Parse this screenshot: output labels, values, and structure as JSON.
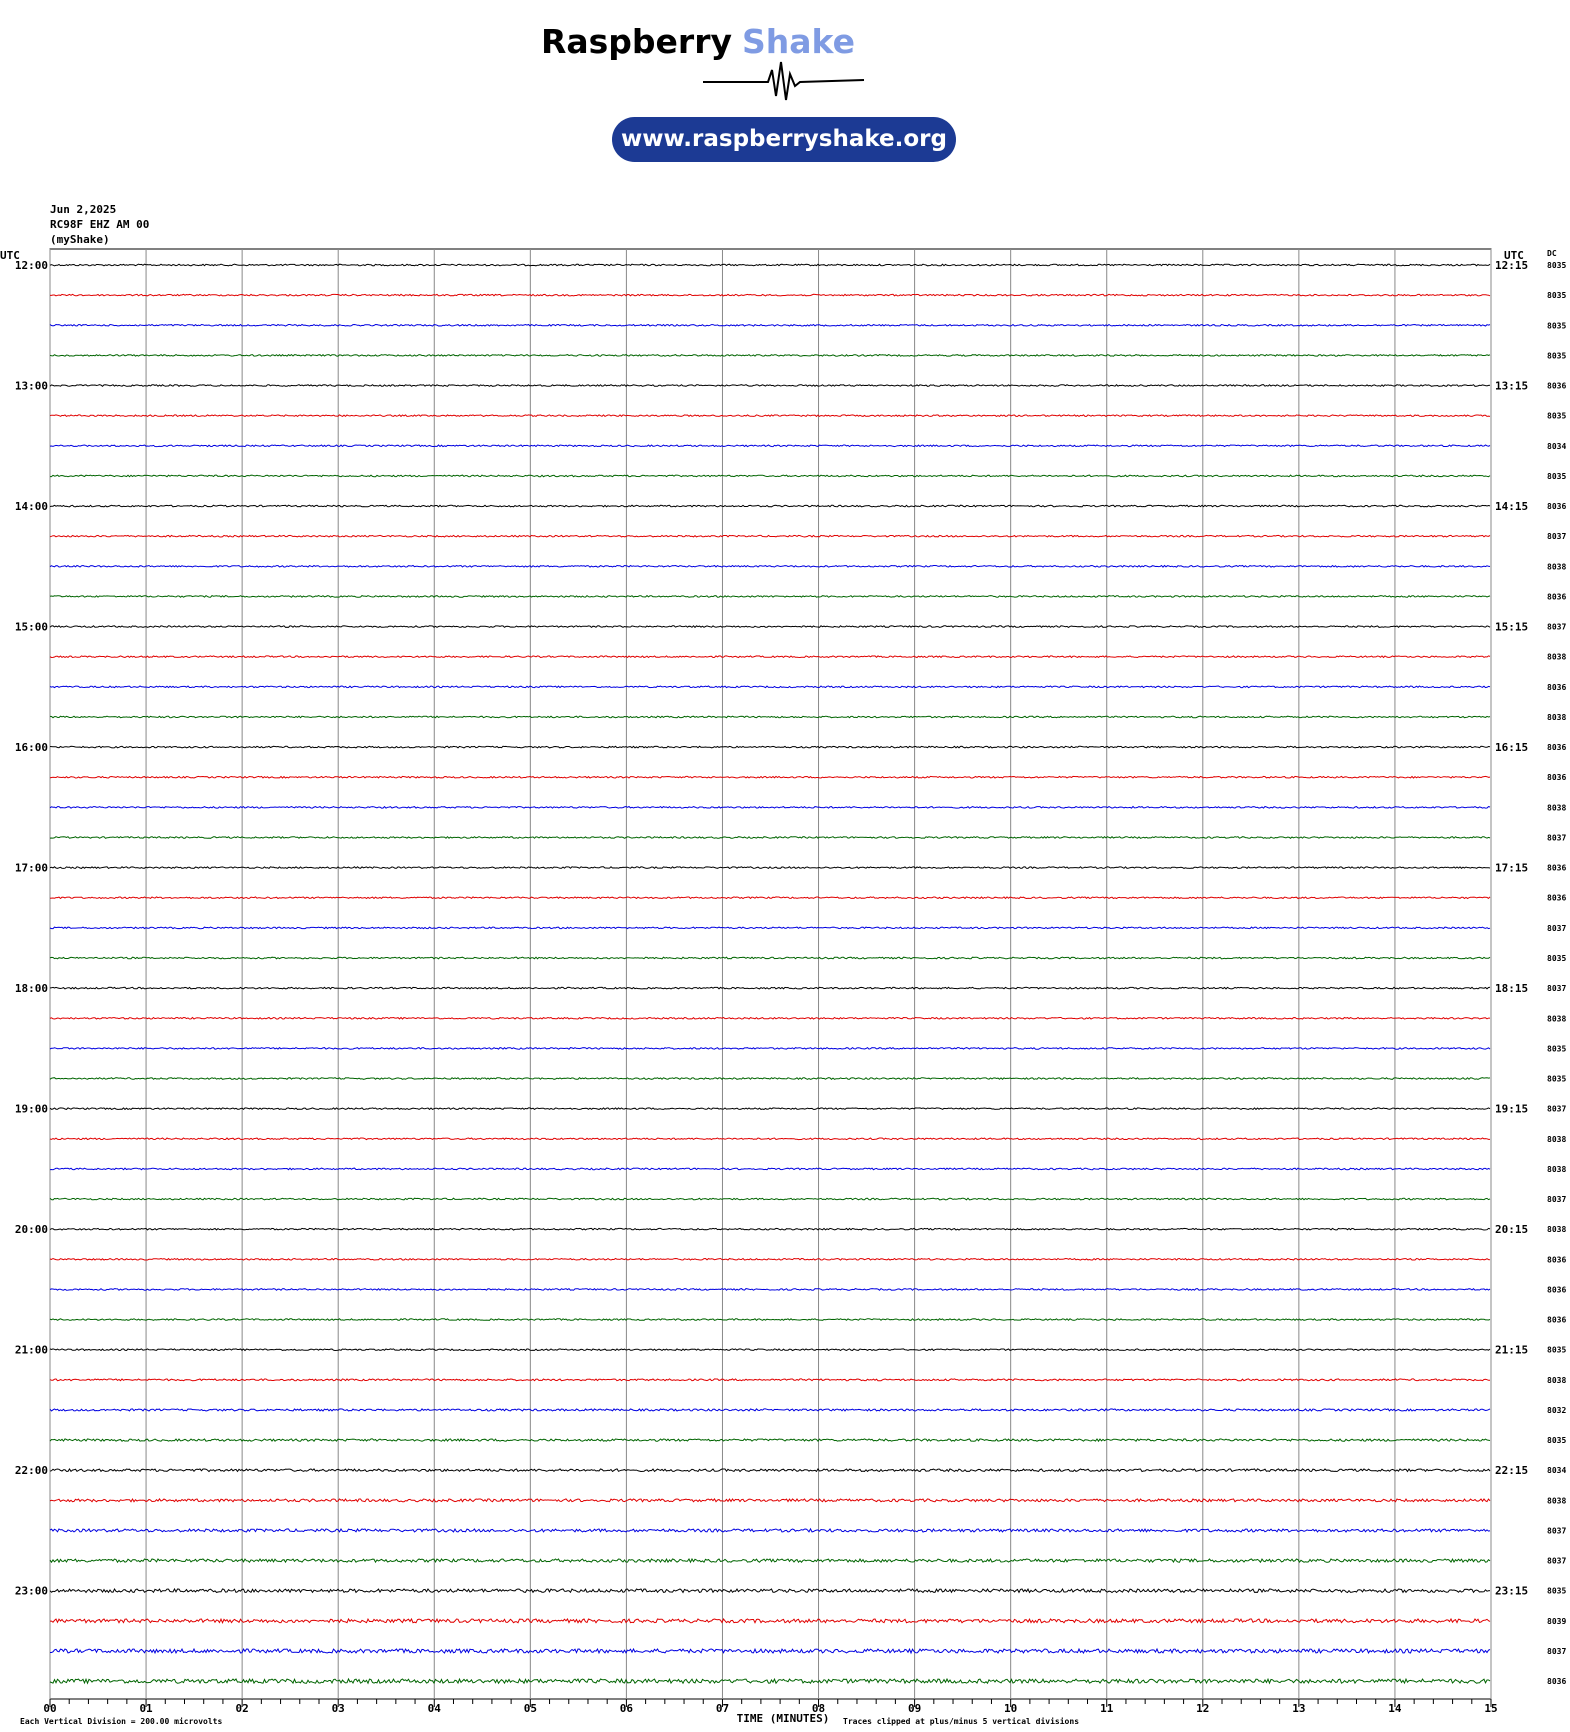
{
  "header": {
    "brand": "Raspberry",
    "brand_accent": "Shake",
    "url": "www.raspberryshake.org"
  },
  "info": {
    "date": "Jun 2,2025",
    "station": "RC98F EHZ AM 00",
    "source": "(myShake)"
  },
  "axis": {
    "left_heading": "UTC",
    "right_heading": "UTC",
    "dc_heading": "DC",
    "hours": [
      {
        "start": "12:00",
        "end": "12:15",
        "dc": [
          8035,
          8035,
          8035,
          8035
        ]
      },
      {
        "start": "13:00",
        "end": "13:15",
        "dc": [
          8036,
          8035,
          8034,
          8035
        ]
      },
      {
        "start": "14:00",
        "end": "14:15",
        "dc": [
          8036,
          8037,
          8038,
          8036
        ]
      },
      {
        "start": "15:00",
        "end": "15:15",
        "dc": [
          8037,
          8038,
          8036,
          8038
        ]
      },
      {
        "start": "16:00",
        "end": "16:15",
        "dc": [
          8036,
          8036,
          8038,
          8037
        ]
      },
      {
        "start": "17:00",
        "end": "17:15",
        "dc": [
          8036,
          8036,
          8037,
          8035
        ]
      },
      {
        "start": "18:00",
        "end": "18:15",
        "dc": [
          8037,
          8038,
          8035,
          8035
        ]
      },
      {
        "start": "19:00",
        "end": "19:15",
        "dc": [
          8037,
          8038,
          8038,
          8037
        ]
      },
      {
        "start": "20:00",
        "end": "20:15",
        "dc": [
          8038,
          8036,
          8036,
          8036
        ]
      },
      {
        "start": "21:00",
        "end": "21:15",
        "dc": [
          8035,
          8038,
          8032,
          8035
        ]
      },
      {
        "start": "22:00",
        "end": "22:15",
        "dc": [
          8034,
          8038,
          8037,
          8037
        ]
      },
      {
        "start": "23:00",
        "end": "23:15",
        "dc": [
          8035,
          8039,
          8037,
          8036
        ]
      }
    ],
    "x_ticks": [
      "00",
      "01",
      "02",
      "03",
      "04",
      "05",
      "06",
      "07",
      "08",
      "09",
      "10",
      "11",
      "12",
      "13",
      "14",
      "15"
    ]
  },
  "footer": {
    "scale_note": "Each Vertical Division =  200.00 microvolts",
    "x_label": "TIME (MINUTES)",
    "clip_note": "Traces clipped at plus/minus 5 vertical divisions"
  }
}
